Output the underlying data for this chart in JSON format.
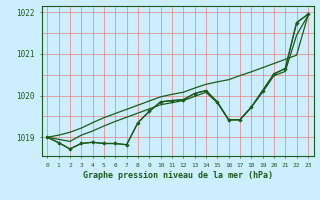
{
  "title": "Graphe pression niveau de la mer (hPa)",
  "bg_color": "#cceeff",
  "grid_color_major": "#e88080",
  "grid_color_minor": "#f0a0a0",
  "line_color": "#1a5c1a",
  "ylim": [
    1018.55,
    1022.15
  ],
  "yticks": [
    1019,
    1020,
    1021,
    1022
  ],
  "xlim": [
    -0.5,
    23.5
  ],
  "xticks": [
    0,
    1,
    2,
    3,
    4,
    5,
    6,
    7,
    8,
    9,
    10,
    11,
    12,
    13,
    14,
    15,
    16,
    17,
    18,
    19,
    20,
    21,
    22,
    23
  ],
  "series_diamond": [
    1019.0,
    1018.87,
    1018.72,
    1018.85,
    1018.88,
    1018.85,
    1018.85,
    1018.82,
    1019.35,
    1019.62,
    1019.85,
    1019.88,
    1019.9,
    1020.05,
    1020.12,
    1019.85,
    1019.42,
    1019.42,
    1019.72,
    1020.12,
    1020.52,
    1020.65,
    1021.75,
    1021.95
  ],
  "series_smooth1": [
    1019.0,
    1019.05,
    1019.12,
    1019.22,
    1019.35,
    1019.47,
    1019.57,
    1019.67,
    1019.77,
    1019.87,
    1019.97,
    1020.03,
    1020.08,
    1020.18,
    1020.27,
    1020.33,
    1020.38,
    1020.48,
    1020.57,
    1020.67,
    1020.77,
    1020.87,
    1020.97,
    1021.92
  ],
  "series_smooth2": [
    1019.0,
    1018.95,
    1018.9,
    1019.05,
    1019.15,
    1019.27,
    1019.38,
    1019.48,
    1019.58,
    1019.68,
    1019.78,
    1019.83,
    1019.88,
    1019.98,
    1020.08,
    1019.83,
    1019.42,
    1019.42,
    1019.72,
    1020.08,
    1020.48,
    1020.58,
    1021.45,
    1021.92
  ],
  "series_arrow": [
    1019.0,
    1018.87,
    1018.72,
    1018.85,
    1018.88,
    1018.85,
    1018.85,
    1018.82,
    1019.35,
    1019.62,
    1019.85,
    1019.88,
    1019.9,
    1020.05,
    1020.12,
    1019.85,
    1019.42,
    1019.42,
    1019.72,
    1020.12,
    1020.52,
    1020.65,
    1021.75,
    1021.95
  ]
}
